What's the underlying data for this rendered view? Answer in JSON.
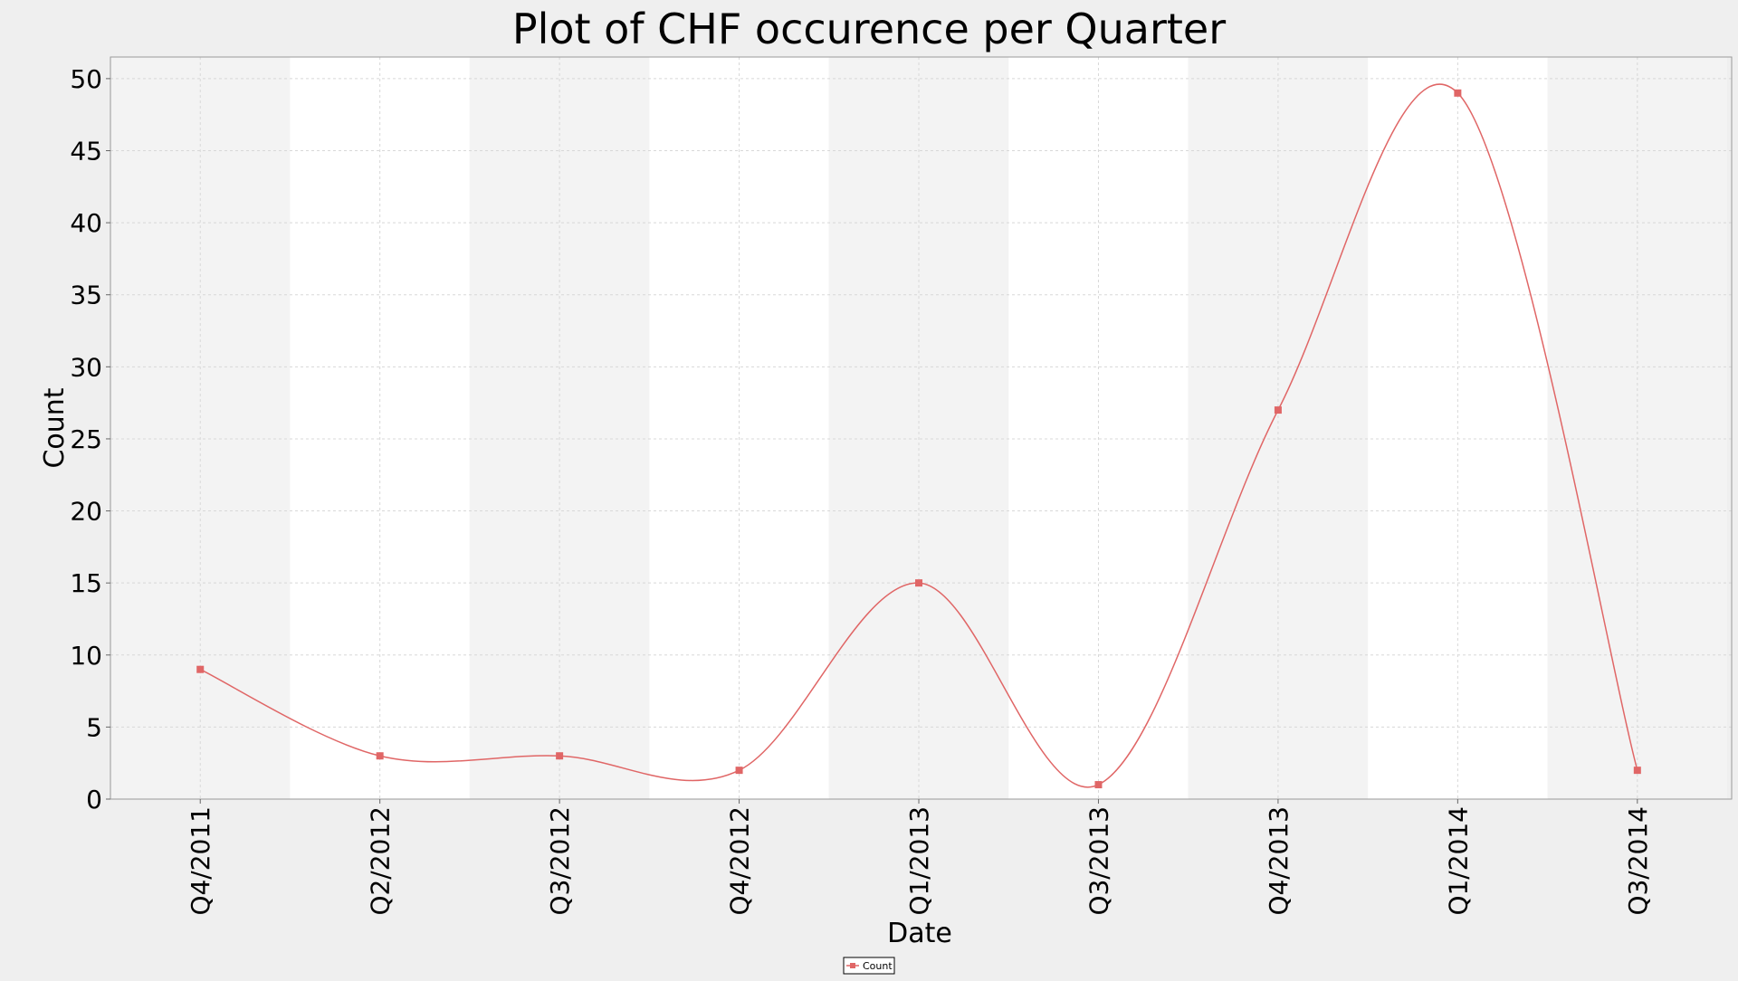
{
  "chart_data": {
    "type": "line",
    "title": "Plot of CHF occurence per Quarter",
    "xlabel": "Date",
    "ylabel": "Count",
    "ylim": [
      0,
      51.5
    ],
    "yticks": [
      0,
      5,
      10,
      15,
      20,
      25,
      30,
      35,
      40,
      45,
      50
    ],
    "categories": [
      "Q4/2011",
      "Q2/2012",
      "Q3/2012",
      "Q4/2012",
      "Q1/2013",
      "Q3/2013",
      "Q4/2013",
      "Q1/2014",
      "Q3/2014"
    ],
    "series": [
      {
        "name": "Count",
        "color": "#e06666",
        "values": [
          9,
          3,
          3,
          2,
          15,
          1,
          27,
          49,
          2
        ]
      }
    ],
    "smoothed": true,
    "band_colors": [
      "#f3f3f3",
      "#ffffff"
    ],
    "grid": true,
    "legend_position": "bottom-center"
  }
}
